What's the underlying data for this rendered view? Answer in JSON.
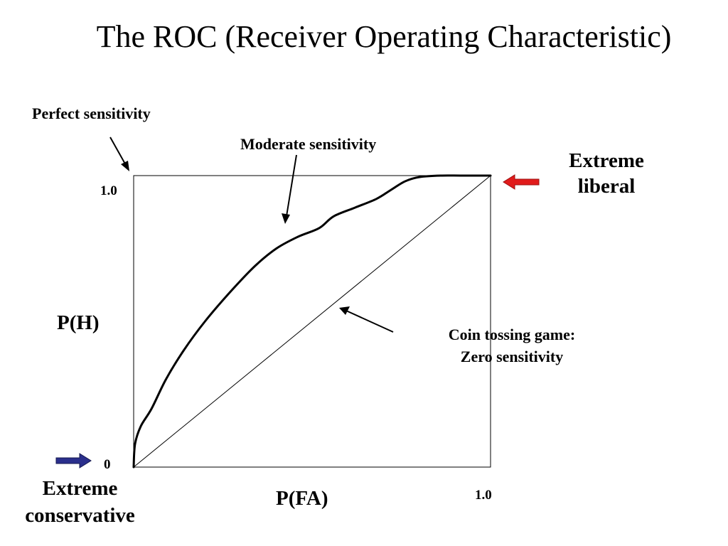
{
  "title": "The ROC (Receiver Operating Characteristic)",
  "annotations": {
    "perfect": "Perfect sensitivity",
    "moderate": "Moderate sensitivity",
    "extreme_liberal": [
      "Extreme",
      "liberal"
    ],
    "coin": [
      "Coin tossing game:",
      "Zero sensitivity"
    ],
    "extreme_conservative": [
      "Extreme",
      "conservative"
    ]
  },
  "colors": {
    "liberal_arrow": "#e11b1b",
    "conservative_arrow": "#2a2f8c",
    "line": "#000000"
  },
  "chart_data": {
    "type": "line",
    "title": "The ROC (Receiver Operating Characteristic)",
    "xlabel": "P(FA)",
    "ylabel": "P(H)",
    "xlim": [
      0,
      1
    ],
    "ylim": [
      0,
      1
    ],
    "x_ticks": [
      {
        "value": 0,
        "label": "0"
      },
      {
        "value": 1,
        "label": "1.0"
      }
    ],
    "y_ticks": [
      {
        "value": 1,
        "label": "1.0"
      }
    ],
    "series": [
      {
        "x": [
          0,
          0.004,
          0.02,
          0.05,
          0.09,
          0.14,
          0.2,
          0.27,
          0.34,
          0.4,
          0.46,
          0.52,
          0.56,
          0.62,
          0.68,
          0.72,
          0.76,
          0.8,
          0.86,
          0.92,
          1.0
        ],
        "y": [
          0,
          0.08,
          0.14,
          0.2,
          0.3,
          0.4,
          0.5,
          0.6,
          0.69,
          0.75,
          0.79,
          0.82,
          0.86,
          0.89,
          0.92,
          0.95,
          0.98,
          0.995,
          1.0,
          1.0,
          1.0
        ]
      },
      {
        "x": [
          0,
          1
        ],
        "y": [
          0,
          1
        ]
      }
    ],
    "grid": false,
    "legend": "none"
  }
}
